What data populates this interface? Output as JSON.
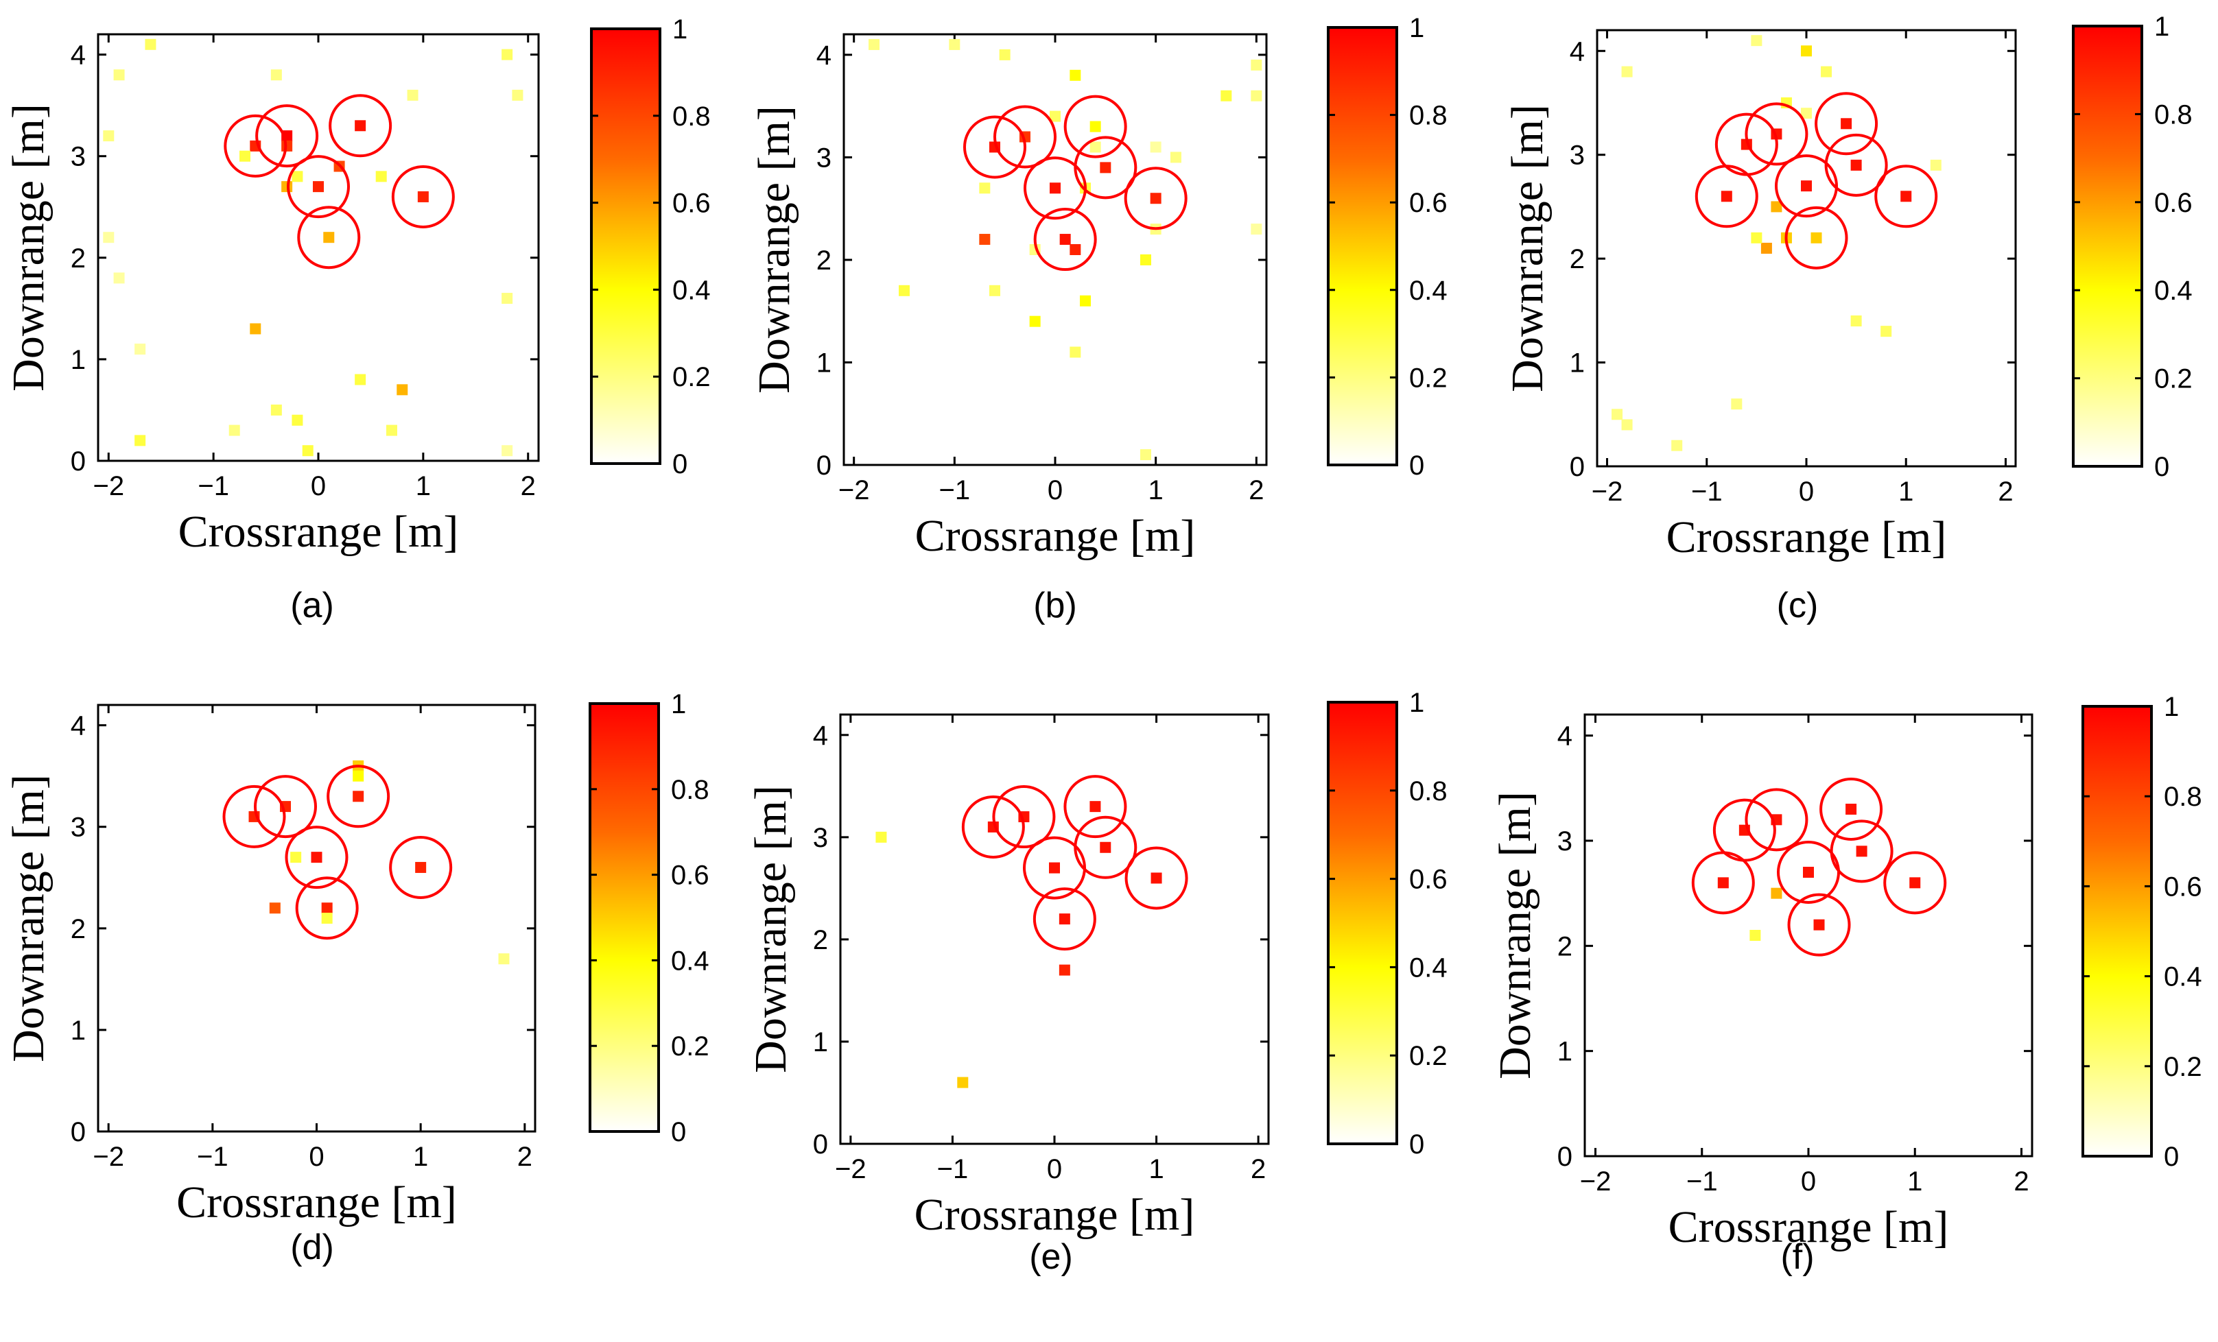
{
  "figure": {
    "colormap": {
      "type": "hot-reversed",
      "stops": [
        {
          "v": 0,
          "color": "#ffffff"
        },
        {
          "v": 0.4,
          "color": "#ffff00"
        },
        {
          "v": 0.7,
          "color": "#ff6a00"
        },
        {
          "v": 1,
          "color": "#ff0000"
        }
      ],
      "ticks": [
        "0",
        "0.2",
        "0.4",
        "0.6",
        "0.8",
        "1"
      ],
      "tick_values": [
        0,
        0.2,
        0.4,
        0.6,
        0.8,
        1
      ]
    },
    "circle_color": "#ff0000"
  },
  "chart_data": [
    {
      "type": "scatter",
      "id": "a",
      "caption": "(a)",
      "xlabel": "Crossrange [m]",
      "ylabel": "Downrange [m]",
      "xlim": [
        -2.1,
        2.1
      ],
      "ylim": [
        0,
        4.2
      ],
      "xticks": [
        -2,
        -1,
        0,
        1,
        2
      ],
      "xtick_labels": [
        "−2",
        "−1",
        "0",
        "1",
        "2"
      ],
      "yticks": [
        0,
        1,
        2,
        3,
        4
      ],
      "ytick_labels": [
        "0",
        "1",
        "2",
        "3",
        "4"
      ],
      "targets": [
        [
          -0.6,
          3.1
        ],
        [
          -0.3,
          3.2
        ],
        [
          0.4,
          3.3
        ],
        [
          0.0,
          2.7
        ],
        [
          1.0,
          2.6
        ],
        [
          0.1,
          2.2
        ]
      ],
      "points": [
        [
          -0.6,
          3.1,
          0.9
        ],
        [
          -0.3,
          3.2,
          1.0
        ],
        [
          -0.3,
          3.1,
          0.85
        ],
        [
          0.4,
          3.3,
          0.95
        ],
        [
          0.0,
          2.7,
          0.9
        ],
        [
          1.0,
          2.6,
          0.9
        ],
        [
          0.1,
          2.2,
          0.55
        ],
        [
          0.2,
          2.9,
          0.8
        ],
        [
          -0.3,
          2.7,
          0.55
        ],
        [
          -0.7,
          3.0,
          0.3
        ],
        [
          -0.2,
          2.8,
          0.3
        ],
        [
          0.6,
          2.8,
          0.3
        ],
        [
          -1.6,
          4.1,
          0.25
        ],
        [
          -0.4,
          3.8,
          0.2
        ],
        [
          -1.9,
          3.8,
          0.2
        ],
        [
          1.8,
          4.0,
          0.25
        ],
        [
          0.9,
          3.6,
          0.2
        ],
        [
          1.9,
          3.6,
          0.2
        ],
        [
          -2.0,
          3.2,
          0.2
        ],
        [
          -2.0,
          2.2,
          0.15
        ],
        [
          -1.9,
          1.8,
          0.15
        ],
        [
          1.8,
          1.6,
          0.2
        ],
        [
          -1.7,
          1.1,
          0.15
        ],
        [
          -0.6,
          1.3,
          0.55
        ],
        [
          0.4,
          0.8,
          0.3
        ],
        [
          0.8,
          0.7,
          0.55
        ],
        [
          -0.4,
          0.5,
          0.25
        ],
        [
          -0.2,
          0.4,
          0.3
        ],
        [
          -0.8,
          0.3,
          0.2
        ],
        [
          0.7,
          0.3,
          0.25
        ],
        [
          -1.7,
          0.2,
          0.3
        ],
        [
          -0.1,
          0.1,
          0.3
        ],
        [
          1.8,
          0.1,
          0.15
        ]
      ]
    },
    {
      "type": "scatter",
      "id": "b",
      "caption": "(b)",
      "xlabel": "Crossrange [m]",
      "ylabel": "Downrange [m]",
      "xlim": [
        -2.1,
        2.1
      ],
      "ylim": [
        0,
        4.2
      ],
      "xticks": [
        -2,
        -1,
        0,
        1,
        2
      ],
      "xtick_labels": [
        "−2",
        "−1",
        "0",
        "1",
        "2"
      ],
      "yticks": [
        0,
        1,
        2,
        3,
        4
      ],
      "ytick_labels": [
        "0",
        "1",
        "2",
        "3",
        "4"
      ],
      "targets": [
        [
          -0.6,
          3.1
        ],
        [
          -0.3,
          3.2
        ],
        [
          0.4,
          3.3
        ],
        [
          0.5,
          2.9
        ],
        [
          0.0,
          2.7
        ],
        [
          1.0,
          2.6
        ],
        [
          0.1,
          2.2
        ]
      ],
      "points": [
        [
          -0.6,
          3.1,
          0.95
        ],
        [
          -0.3,
          3.2,
          0.85
        ],
        [
          0.4,
          3.3,
          0.4
        ],
        [
          0.5,
          2.9,
          0.9
        ],
        [
          0.0,
          2.7,
          0.95
        ],
        [
          1.0,
          2.6,
          0.9
        ],
        [
          0.1,
          2.2,
          0.95
        ],
        [
          0.2,
          2.1,
          0.9
        ],
        [
          -0.7,
          2.2,
          0.8
        ],
        [
          0.4,
          3.1,
          0.2
        ],
        [
          0.3,
          2.7,
          0.3
        ],
        [
          0.0,
          3.4,
          0.25
        ],
        [
          -0.7,
          2.7,
          0.25
        ],
        [
          1.0,
          3.1,
          0.15
        ],
        [
          1.2,
          3.0,
          0.2
        ],
        [
          1.0,
          2.3,
          0.2
        ],
        [
          -0.2,
          2.1,
          0.2
        ],
        [
          0.9,
          2.0,
          0.35
        ],
        [
          -1.8,
          4.1,
          0.2
        ],
        [
          -1.0,
          4.1,
          0.2
        ],
        [
          -0.5,
          4.0,
          0.25
        ],
        [
          0.2,
          3.8,
          0.4
        ],
        [
          2.0,
          3.9,
          0.2
        ],
        [
          1.7,
          3.6,
          0.3
        ],
        [
          2.0,
          3.6,
          0.2
        ],
        [
          2.0,
          2.3,
          0.15
        ],
        [
          -1.5,
          1.7,
          0.3
        ],
        [
          -0.6,
          1.7,
          0.25
        ],
        [
          0.3,
          1.6,
          0.4
        ],
        [
          -0.2,
          1.4,
          0.4
        ],
        [
          0.2,
          1.1,
          0.25
        ],
        [
          0.9,
          0.1,
          0.2
        ]
      ]
    },
    {
      "type": "scatter",
      "id": "c",
      "caption": "(c)",
      "xlabel": "Crossrange [m]",
      "ylabel": "Downrange [m]",
      "xlim": [
        -2.1,
        2.1
      ],
      "ylim": [
        0,
        4.2
      ],
      "xticks": [
        -2,
        -1,
        0,
        1,
        2
      ],
      "xtick_labels": [
        "−2",
        "−1",
        "0",
        "1",
        "2"
      ],
      "yticks": [
        0,
        1,
        2,
        3,
        4
      ],
      "ytick_labels": [
        "0",
        "1",
        "2",
        "3",
        "4"
      ],
      "targets": [
        [
          -0.6,
          3.1
        ],
        [
          -0.3,
          3.2
        ],
        [
          0.4,
          3.3
        ],
        [
          0.5,
          2.9
        ],
        [
          0.0,
          2.7
        ],
        [
          -0.8,
          2.6
        ],
        [
          1.0,
          2.6
        ],
        [
          0.1,
          2.2
        ]
      ],
      "points": [
        [
          -0.6,
          3.1,
          0.95
        ],
        [
          -0.3,
          3.2,
          0.95
        ],
        [
          0.4,
          3.3,
          0.95
        ],
        [
          0.5,
          2.9,
          0.95
        ],
        [
          0.0,
          2.7,
          0.95
        ],
        [
          -0.8,
          2.6,
          0.95
        ],
        [
          1.0,
          2.6,
          0.95
        ],
        [
          0.1,
          2.2,
          0.5
        ],
        [
          -0.3,
          2.5,
          0.55
        ],
        [
          -0.2,
          2.2,
          0.5
        ],
        [
          -0.4,
          2.1,
          0.6
        ],
        [
          -0.5,
          2.2,
          0.3
        ],
        [
          0.0,
          4.0,
          0.45
        ],
        [
          -0.5,
          4.1,
          0.2
        ],
        [
          0.2,
          3.8,
          0.25
        ],
        [
          -0.2,
          3.5,
          0.3
        ],
        [
          0.0,
          3.4,
          0.2
        ],
        [
          -1.8,
          3.8,
          0.2
        ],
        [
          1.3,
          2.9,
          0.2
        ],
        [
          0.5,
          1.4,
          0.25
        ],
        [
          0.8,
          1.3,
          0.25
        ],
        [
          -0.7,
          0.6,
          0.2
        ],
        [
          -1.9,
          0.5,
          0.2
        ],
        [
          -1.8,
          0.4,
          0.2
        ],
        [
          -1.3,
          0.2,
          0.2
        ]
      ]
    },
    {
      "type": "scatter",
      "id": "d",
      "caption": "(d)",
      "xlabel": "Crossrange [m]",
      "ylabel": "Downrange [m]",
      "xlim": [
        -2.1,
        2.1
      ],
      "ylim": [
        0,
        4.2
      ],
      "xticks": [
        -2,
        -1,
        0,
        1,
        2
      ],
      "xtick_labels": [
        "−2",
        "−1",
        "0",
        "1",
        "2"
      ],
      "yticks": [
        0,
        1,
        2,
        3,
        4
      ],
      "ytick_labels": [
        "0",
        "1",
        "2",
        "3",
        "4"
      ],
      "targets": [
        [
          -0.6,
          3.1
        ],
        [
          -0.3,
          3.2
        ],
        [
          0.4,
          3.3
        ],
        [
          0.0,
          2.7
        ],
        [
          1.0,
          2.6
        ],
        [
          0.1,
          2.2
        ]
      ],
      "points": [
        [
          -0.6,
          3.1,
          0.9
        ],
        [
          -0.3,
          3.2,
          0.9
        ],
        [
          0.4,
          3.3,
          0.9
        ],
        [
          0.4,
          3.6,
          0.5
        ],
        [
          0.4,
          3.5,
          0.4
        ],
        [
          0.0,
          2.7,
          0.95
        ],
        [
          1.0,
          2.6,
          0.9
        ],
        [
          0.1,
          2.2,
          0.9
        ],
        [
          0.1,
          2.1,
          0.3
        ],
        [
          -0.4,
          2.2,
          0.75
        ],
        [
          -0.2,
          2.7,
          0.3
        ],
        [
          1.8,
          1.7,
          0.2
        ]
      ]
    },
    {
      "type": "scatter",
      "id": "e",
      "caption": "(e)",
      "xlabel": "Crossrange [m]",
      "ylabel": "Downrange [m]",
      "xlim": [
        -2.1,
        2.1
      ],
      "ylim": [
        0,
        4.2
      ],
      "xticks": [
        -2,
        -1,
        0,
        1,
        2
      ],
      "xtick_labels": [
        "−2",
        "−1",
        "0",
        "1",
        "2"
      ],
      "yticks": [
        0,
        1,
        2,
        3,
        4
      ],
      "ytick_labels": [
        "0",
        "1",
        "2",
        "3",
        "4"
      ],
      "targets": [
        [
          -0.6,
          3.1
        ],
        [
          -0.3,
          3.2
        ],
        [
          0.4,
          3.3
        ],
        [
          0.5,
          2.9
        ],
        [
          0.0,
          2.7
        ],
        [
          1.0,
          2.6
        ],
        [
          0.1,
          2.2
        ]
      ],
      "points": [
        [
          -0.6,
          3.1,
          0.95
        ],
        [
          -0.3,
          3.2,
          0.95
        ],
        [
          0.4,
          3.3,
          0.95
        ],
        [
          0.5,
          2.9,
          0.95
        ],
        [
          0.0,
          2.7,
          0.95
        ],
        [
          1.0,
          2.6,
          0.95
        ],
        [
          0.1,
          2.2,
          0.95
        ],
        [
          0.1,
          1.7,
          0.9
        ],
        [
          -1.7,
          3.0,
          0.3
        ],
        [
          -0.9,
          0.6,
          0.5
        ]
      ]
    },
    {
      "type": "scatter",
      "id": "f",
      "caption": "(f)",
      "xlabel": "Crossrange [m]",
      "ylabel": "Downrange [m]",
      "xlim": [
        -2.1,
        2.1
      ],
      "ylim": [
        0,
        4.2
      ],
      "xticks": [
        -2,
        -1,
        0,
        1,
        2
      ],
      "xtick_labels": [
        "−2",
        "−1",
        "0",
        "1",
        "2"
      ],
      "yticks": [
        0,
        1,
        2,
        3,
        4
      ],
      "ytick_labels": [
        "0",
        "1",
        "2",
        "3",
        "4"
      ],
      "targets": [
        [
          -0.6,
          3.1
        ],
        [
          -0.3,
          3.2
        ],
        [
          0.4,
          3.3
        ],
        [
          0.5,
          2.9
        ],
        [
          0.0,
          2.7
        ],
        [
          -0.8,
          2.6
        ],
        [
          1.0,
          2.6
        ],
        [
          0.1,
          2.2
        ]
      ],
      "points": [
        [
          -0.6,
          3.1,
          0.95
        ],
        [
          -0.3,
          3.2,
          0.95
        ],
        [
          0.4,
          3.3,
          0.95
        ],
        [
          0.5,
          2.9,
          0.95
        ],
        [
          0.0,
          2.7,
          0.95
        ],
        [
          -0.8,
          2.6,
          0.95
        ],
        [
          1.0,
          2.6,
          0.95
        ],
        [
          0.1,
          2.2,
          0.95
        ],
        [
          -0.3,
          2.5,
          0.55
        ],
        [
          -0.5,
          2.1,
          0.3
        ]
      ]
    }
  ]
}
